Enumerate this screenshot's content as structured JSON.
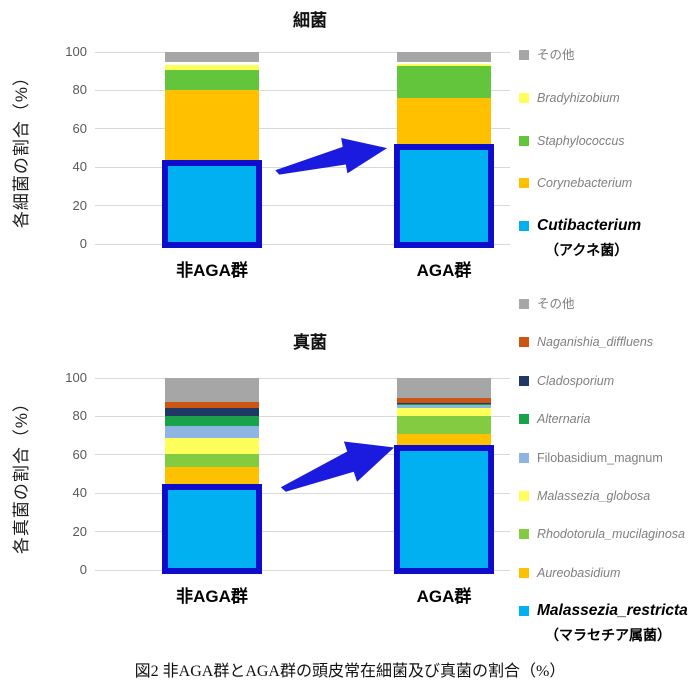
{
  "page": {
    "caption": "図2 非AGA群とAGA群の頭皮常在細菌及び真菌の割合（%）"
  },
  "colors": {
    "accent_blue": "#00B0F0",
    "highlight_border": "#0D0DCB",
    "arrow": "#1B1BE0",
    "grid": "#D9D9D9",
    "tick_text": "#595959",
    "legend_text": "#7F7F7F"
  },
  "chart_data": [
    {
      "type": "bar",
      "stacked": true,
      "title": "細菌",
      "ylabel": "各細菌の割合（%）",
      "xlabel": "",
      "ylim": [
        0,
        100
      ],
      "yticks": [
        0,
        20,
        40,
        60,
        80,
        100
      ],
      "grid": true,
      "legend_position": "right",
      "categories": [
        "非AGA群",
        "AGA群"
      ],
      "series": [
        {
          "name": "Cutibacterium",
          "color": "#00B0F0",
          "highlight": true,
          "values": [
            44,
            52
          ]
        },
        {
          "name": "Corynebacterium",
          "color": "#FFC000",
          "values": [
            36,
            24
          ]
        },
        {
          "name": "Staphylococcus",
          "color": "#63C53C",
          "values": [
            10.5,
            16.5
          ]
        },
        {
          "name": "Bradyhizobium",
          "color": "#FFFF5C",
          "values": [
            3,
            1.5
          ]
        },
        {
          "name": "",
          "color": "#FFFFFF",
          "values": [
            1.5,
            1
          ]
        },
        {
          "name": "その他",
          "color": "#A6A6A6",
          "values": [
            5,
            5
          ]
        }
      ],
      "legend": [
        {
          "label": "その他",
          "color": "#A6A6A6",
          "italic": false
        },
        {
          "label": "Bradyhizobium",
          "color": "#FFFF5C",
          "italic": true
        },
        {
          "label": "Staphylococcus",
          "color": "#63C53C",
          "italic": true
        },
        {
          "label": "Corynebacterium",
          "color": "#FFC000",
          "italic": true
        },
        {
          "label": "Cutibacterium",
          "color": "#00B0F0",
          "italic": true,
          "bold": true,
          "sublabel": "（アクネ菌）"
        }
      ]
    },
    {
      "type": "bar",
      "stacked": true,
      "title": "真菌",
      "ylabel": "各真菌の割合（%）",
      "xlabel": "",
      "ylim": [
        0,
        100
      ],
      "yticks": [
        0,
        20,
        40,
        60,
        80,
        100
      ],
      "grid": true,
      "legend_position": "right",
      "categories": [
        "非AGA群",
        "AGA群"
      ],
      "series": [
        {
          "name": "Malassezia_restricta",
          "color": "#00B0F0",
          "highlight": true,
          "values": [
            45,
            65
          ]
        },
        {
          "name": "Aureobasidium",
          "color": "#FFC000",
          "values": [
            8.5,
            6
          ]
        },
        {
          "name": "Rhodotorula_mucilaginosa",
          "color": "#83CB41",
          "values": [
            7,
            9
          ]
        },
        {
          "name": "Malassezia_globosa",
          "color": "#FFFF5C",
          "values": [
            8,
            4.5
          ]
        },
        {
          "name": "Filobasidium_magnum",
          "color": "#8EB4E3",
          "values": [
            6.5,
            1.5
          ]
        },
        {
          "name": "Alternaria",
          "color": "#18A34B",
          "values": [
            5,
            0.5
          ]
        },
        {
          "name": "Cladosporium",
          "color": "#1F3864",
          "values": [
            4.5,
            0.5
          ]
        },
        {
          "name": "Naganishia_diffluens",
          "color": "#CC5511",
          "values": [
            3,
            2.5
          ]
        },
        {
          "name": "その他",
          "color": "#A6A6A6",
          "values": [
            12.5,
            10.5
          ]
        }
      ],
      "legend": [
        {
          "label": "その他",
          "color": "#A6A6A6",
          "italic": false
        },
        {
          "label": "Naganishia_diffluens",
          "color": "#CC5511",
          "italic": true
        },
        {
          "label": "Cladosporium",
          "color": "#1F3864",
          "italic": true
        },
        {
          "label": "Alternaria",
          "color": "#18A34B",
          "italic": true
        },
        {
          "label": "Filobasidium_magnum",
          "color": "#8EB4E3",
          "italic": false
        },
        {
          "label": "Malassezia_globosa",
          "color": "#FFFF5C",
          "italic": true
        },
        {
          "label": "Rhodotorula_mucilaginosa",
          "color": "#83CB41",
          "italic": true
        },
        {
          "label": "Aureobasidium",
          "color": "#FFC000",
          "italic": true
        },
        {
          "label": "Malassezia_restricta",
          "color": "#00B0F0",
          "italic": true,
          "bold": true,
          "sublabel": "（マラセチア属菌）"
        }
      ]
    }
  ]
}
